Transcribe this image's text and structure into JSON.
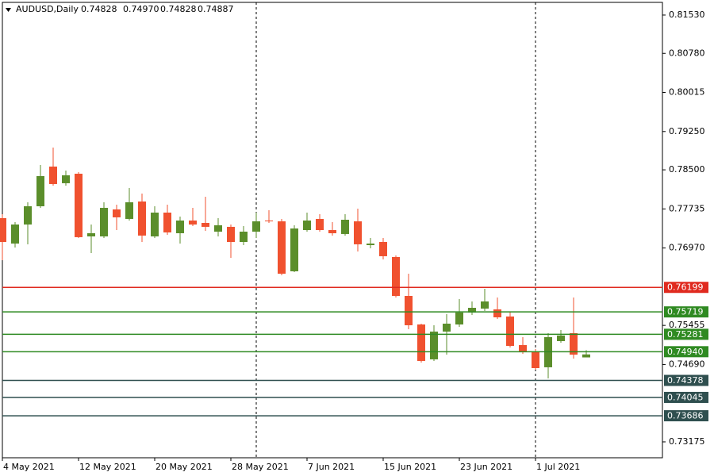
{
  "chart_data": {
    "type": "candlestick",
    "title": "AUDUSD,Daily",
    "last_bar_labels": [
      "0.74828",
      "0.74970",
      "0.74828",
      "0.74887"
    ],
    "categories": [
      "4 May 2021",
      null,
      null,
      null,
      null,
      null,
      "12 May 2021",
      null,
      null,
      null,
      null,
      null,
      "20 May 2021",
      null,
      null,
      null,
      null,
      null,
      "28 May 2021",
      null,
      null,
      null,
      null,
      null,
      "7 Jun 2021",
      null,
      null,
      null,
      null,
      null,
      "15 Jun 2021",
      null,
      null,
      null,
      null,
      null,
      "23 Jun 2021",
      null,
      null,
      null,
      null,
      null,
      "1 Jul 2021",
      null,
      null,
      null,
      null
    ],
    "open": [
      0.77554,
      0.77057,
      0.7743,
      0.77787,
      0.78564,
      0.78238,
      0.78424,
      0.77197,
      0.77197,
      0.77725,
      0.77539,
      0.7788,
      0.77197,
      0.77663,
      0.77259,
      0.77508,
      0.77461,
      0.7729,
      0.77384,
      0.77088,
      0.7729,
      0.77508,
      0.77492,
      0.76514,
      0.77321,
      0.77539,
      0.77321,
      0.77244,
      0.77492,
      0.77026,
      0.77088,
      0.76793,
      0.76032,
      0.75473,
      0.7479,
      0.75334,
      0.75473,
      0.75706,
      0.75784,
      0.75768,
      0.75629,
      0.7507,
      0.74945,
      0.74635,
      0.75147,
      0.75303,
      0.74828
    ],
    "high": [
      0.77632,
      0.77477,
      0.77865,
      0.78595,
      0.78937,
      0.78486,
      0.78455,
      0.7743,
      0.77865,
      0.77818,
      0.78145,
      0.78036,
      0.77787,
      0.77818,
      0.77585,
      0.77756,
      0.77974,
      0.77554,
      0.7743,
      0.77399,
      0.77663,
      0.7771,
      0.77539,
      0.77415,
      0.77663,
      0.77632,
      0.77477,
      0.77632,
      0.77741,
      0.77166,
      0.77166,
      0.76824,
      0.76467,
      0.75489,
      0.75458,
      0.75675,
      0.7597,
      0.75924,
      0.76172,
      0.76001,
      0.75722,
      0.75225,
      0.74992,
      0.75303,
      0.75365,
      0.76001,
      0.7497
    ],
    "low": [
      0.76731,
      0.7698,
      0.77042,
      0.77756,
      0.78191,
      0.78191,
      0.77166,
      0.76871,
      0.77166,
      0.77321,
      0.77508,
      0.77088,
      0.77166,
      0.77228,
      0.77057,
      0.77399,
      0.77306,
      0.77197,
      0.76778,
      0.77026,
      0.77166,
      0.77461,
      0.76436,
      0.76498,
      0.7729,
      0.7729,
      0.77213,
      0.77213,
      0.76902,
      0.76964,
      0.76747,
      0.76001,
      0.7538,
      0.74728,
      0.74759,
      0.74883,
      0.75427,
      0.7566,
      0.75737,
      0.75582,
      0.75023,
      0.74899,
      0.74588,
      0.74417,
      0.75116,
      0.74806,
      0.74828
    ],
    "close": [
      0.77088,
      0.7743,
      0.77787,
      0.78377,
      0.78222,
      0.78393,
      0.77182,
      0.77259,
      0.77756,
      0.7757,
      0.77865,
      0.77213,
      0.77663,
      0.77275,
      0.77508,
      0.7743,
      0.77384,
      0.77415,
      0.77088,
      0.7729,
      0.77492,
      0.77492,
      0.76467,
      0.77352,
      0.77508,
      0.77321,
      0.77259,
      0.77523,
      0.77042,
      0.77057,
      0.76809,
      0.76032,
      0.75458,
      0.74759,
      0.75334,
      0.75489,
      0.75706,
      0.75799,
      0.75924,
      0.75613,
      0.75054,
      0.74945,
      0.74619,
      0.75225,
      0.75256,
      0.74883,
      0.74887
    ],
    "up_color": "#5b8e2b",
    "down_color": "#f0512f",
    "ylim": [
      0.72864,
      0.81778
    ],
    "yticks": [
      {
        "value": 0.8153,
        "label": "0.81530"
      },
      {
        "value": 0.8078,
        "label": "0.80780"
      },
      {
        "value": 0.80015,
        "label": "0.80015"
      },
      {
        "value": 0.7925,
        "label": "0.79250"
      },
      {
        "value": 0.785,
        "label": "0.78500"
      },
      {
        "value": 0.77735,
        "label": "0.77735"
      },
      {
        "value": 0.7697,
        "label": "0.76970"
      },
      {
        "value": 0.75455,
        "label": "0.75455"
      },
      {
        "value": 0.7469,
        "label": "0.74690"
      },
      {
        "value": 0.73175,
        "label": "0.73175"
      }
    ],
    "levels": [
      {
        "value": 0.76199,
        "label": "0.76199",
        "color": "#e02a1f"
      },
      {
        "value": 0.75719,
        "label": "0.75719",
        "color": "#2f8a22"
      },
      {
        "value": 0.75281,
        "label": "0.75281",
        "color": "#2f8a22"
      },
      {
        "value": 0.7494,
        "label": "0.74940",
        "color": "#2f8a22"
      },
      {
        "value": 0.74378,
        "label": "0.74378",
        "color": "#2f4f4f"
      },
      {
        "value": 0.74045,
        "label": "0.74045",
        "color": "#2f4f4f"
      },
      {
        "value": 0.73686,
        "label": "0.73686",
        "color": "#2f4f4f"
      }
    ]
  }
}
